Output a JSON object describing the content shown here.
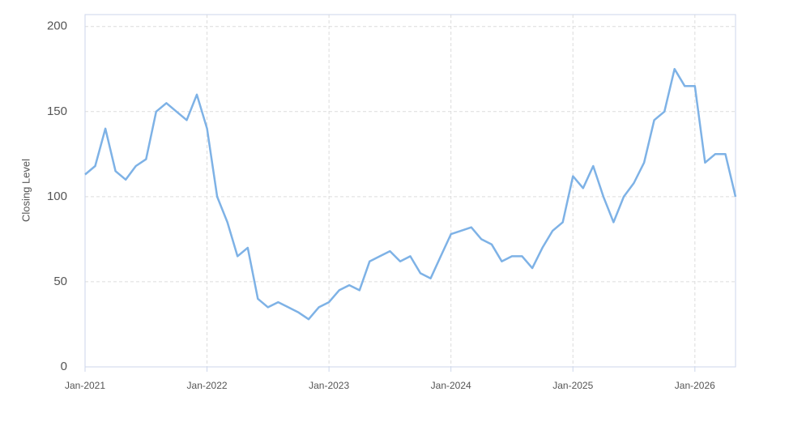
{
  "chart_data": {
    "type": "line",
    "y_label": "Closing Level",
    "x": [
      "2021-01",
      "2021-02",
      "2021-03",
      "2021-04",
      "2021-05",
      "2021-06",
      "2021-07",
      "2021-08",
      "2021-09",
      "2021-10",
      "2021-11",
      "2021-12",
      "2022-01",
      "2022-02",
      "2022-03",
      "2022-04",
      "2022-05",
      "2022-06",
      "2022-07",
      "2022-08",
      "2022-09",
      "2022-10",
      "2022-11",
      "2022-12",
      "2023-01",
      "2023-02",
      "2023-03",
      "2023-04",
      "2023-05",
      "2023-06",
      "2023-07",
      "2023-08",
      "2023-09",
      "2023-10",
      "2023-11",
      "2023-12",
      "2024-01",
      "2024-02",
      "2024-03",
      "2024-04",
      "2024-05",
      "2024-06",
      "2024-07",
      "2024-08",
      "2024-09",
      "2024-10",
      "2024-11",
      "2024-12",
      "2025-01",
      "2025-02",
      "2025-03",
      "2025-04",
      "2025-05",
      "2025-06",
      "2025-07",
      "2025-08",
      "2025-09",
      "2025-10",
      "2025-11",
      "2025-12",
      "2026-01",
      "2026-02",
      "2026-03",
      "2026-04",
      "2026-05"
    ],
    "values": [
      113,
      118,
      140,
      115,
      110,
      118,
      122,
      150,
      155,
      150,
      145,
      160,
      140,
      100,
      85,
      65,
      70,
      40,
      35,
      38,
      35,
      32,
      28,
      35,
      38,
      45,
      48,
      45,
      62,
      65,
      68,
      62,
      65,
      55,
      52,
      65,
      78,
      80,
      82,
      75,
      72,
      62,
      65,
      65,
      58,
      70,
      80,
      85,
      112,
      105,
      118,
      100,
      85,
      100,
      108,
      120,
      145,
      150,
      175,
      165,
      165,
      120,
      125,
      125,
      100
    ],
    "color": "#7eb2e6",
    "xlim": [
      "2021-01",
      "2026-05"
    ],
    "xticks": [
      {
        "value": "2021-01",
        "label": "Jan-2021"
      },
      {
        "value": "2022-01",
        "label": "Jan-2022"
      },
      {
        "value": "2023-01",
        "label": "Jan-2023"
      },
      {
        "value": "2024-01",
        "label": "Jan-2024"
      },
      {
        "value": "2025-01",
        "label": "Jan-2025"
      },
      {
        "value": "2026-01",
        "label": "Jan-2026"
      }
    ],
    "ylim": [
      0,
      207
    ],
    "yticks": [
      0,
      50,
      100,
      150,
      200
    ],
    "grid": true
  }
}
